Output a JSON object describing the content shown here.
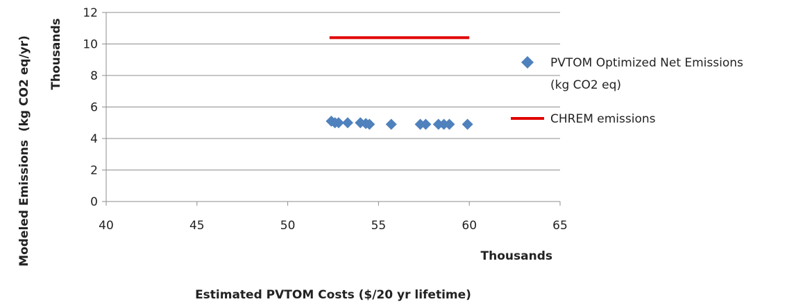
{
  "chart_data": {
    "type": "scatter",
    "title": "",
    "xlabel": "Estimated PVTOM Costs ($/20 yr lifetime)",
    "ylabel": "Modeled Emissions  (kg CO2 eq/yr)",
    "x_units_label": "Thousands",
    "y_units_label": "Thousands",
    "xlim": [
      40,
      65
    ],
    "ylim": [
      0,
      12
    ],
    "x_ticks": [
      "40",
      "45",
      "50",
      "55",
      "60",
      "65"
    ],
    "y_ticks": [
      "0",
      "2",
      "4",
      "6",
      "8",
      "10",
      "12"
    ],
    "grid": "horizontal",
    "legend_position": "right",
    "series": [
      {
        "name": "PVTOM Optimized Net Emissions (kg CO2 eq)",
        "legend_lines": [
          "PVTOM Optimized Net Emissions",
          "(kg CO2 eq)"
        ],
        "kind": "scatter",
        "marker": "diamond",
        "color": "#4f81bd",
        "points": [
          [
            52.4,
            5.1
          ],
          [
            52.6,
            5.0
          ],
          [
            52.8,
            5.0
          ],
          [
            53.3,
            5.0
          ],
          [
            54.0,
            5.0
          ],
          [
            54.3,
            4.95
          ],
          [
            54.5,
            4.9
          ],
          [
            55.7,
            4.9
          ],
          [
            57.3,
            4.9
          ],
          [
            57.6,
            4.9
          ],
          [
            58.3,
            4.9
          ],
          [
            58.6,
            4.9
          ],
          [
            58.9,
            4.9
          ],
          [
            59.9,
            4.9
          ]
        ]
      },
      {
        "name": "CHREM emissions",
        "legend_lines": [
          "CHREM emissions"
        ],
        "kind": "line",
        "color": "#e00000",
        "points": [
          [
            52.3,
            10.4
          ],
          [
            60.0,
            10.4
          ]
        ]
      }
    ]
  }
}
